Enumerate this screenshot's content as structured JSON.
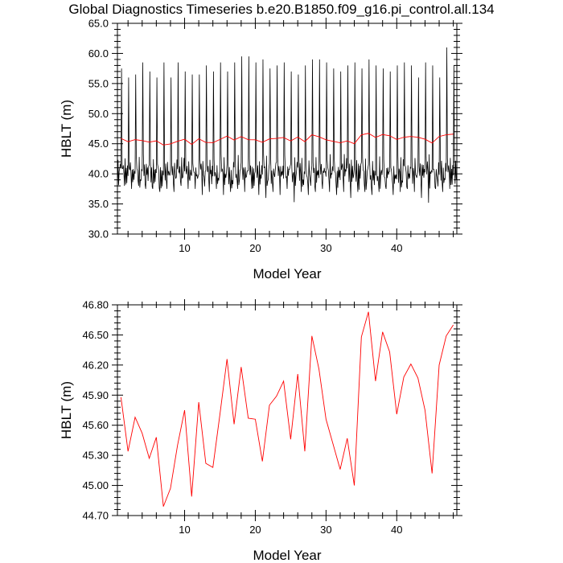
{
  "title": "Global Diagnostics Timeseries b.e20.B1850.f09_g16.pi_control.all.134",
  "chart_data": [
    {
      "type": "line",
      "title": "Global Diagnostics Timeseries b.e20.B1850.f09_g16.pi_control.all.134",
      "xlabel": "Model Year",
      "ylabel": "HBLT (m)",
      "xlim": [
        0.5,
        48.5
      ],
      "ylim": [
        30.0,
        65.0
      ],
      "x_ticks": [
        10,
        20,
        30,
        40
      ],
      "x_tick_labels": [
        "10",
        "20",
        "30",
        "40"
      ],
      "y_ticks": [
        30,
        35,
        40,
        45,
        50,
        55,
        60,
        65
      ],
      "y_tick_labels": [
        "30.0",
        "35.0",
        "40.0",
        "45.0",
        "50.0",
        "55.0",
        "60.0",
        "65.0"
      ],
      "series": [
        {
          "color": "#000000",
          "monthly_peaks": [
            57.5,
            56.0,
            56.5,
            58.5,
            57.0,
            56.0,
            58.5,
            56.0,
            58.5,
            57.0,
            56.5,
            56.5,
            58.0,
            57.0,
            58.5,
            57.0,
            58.5,
            59.5,
            59.5,
            58.5,
            59.0,
            57.5,
            58.0,
            58.5,
            57.0,
            56.5,
            58.0,
            59.0,
            59.0,
            58.5,
            57.5,
            57.0,
            58.0,
            58.5,
            57.5,
            59.0,
            58.0,
            57.5,
            57.0,
            58.0,
            58.5,
            58.0,
            56.0,
            58.5,
            58.0,
            56.0,
            61.0,
            58.0
          ],
          "monthly_troughs": [
            37.5,
            38.0,
            37.5,
            38.0,
            37.5,
            37.5,
            37.0,
            37.5,
            37.0,
            38.0,
            37.5,
            37.5,
            36.5,
            37.0,
            37.5,
            36.5,
            37.0,
            37.5,
            37.0,
            37.5,
            36.5,
            36.0,
            37.0,
            36.5,
            37.5,
            35.3,
            37.0,
            36.5,
            37.0,
            37.5,
            37.0,
            36.5,
            37.0,
            36.0,
            37.0,
            37.0,
            36.5,
            37.0,
            37.5,
            36.5,
            37.0,
            37.5,
            37.0,
            36.0,
            35.2,
            37.5,
            37.0,
            37.5
          ]
        },
        {
          "color": "#ff0000",
          "x": [
            1,
            2,
            3,
            4,
            5,
            6,
            7,
            8,
            9,
            10,
            11,
            12,
            13,
            14,
            15,
            16,
            17,
            18,
            19,
            20,
            21,
            22,
            23,
            24,
            25,
            26,
            27,
            28,
            29,
            30,
            31,
            32,
            33,
            34,
            35,
            36,
            37,
            38,
            39,
            40,
            41,
            42,
            43,
            44,
            45,
            46,
            47,
            48
          ],
          "y": [
            45.88,
            45.34,
            45.68,
            45.52,
            45.27,
            45.48,
            44.79,
            44.97,
            45.4,
            45.75,
            44.89,
            45.83,
            45.22,
            45.18,
            45.71,
            46.26,
            45.61,
            46.18,
            45.67,
            45.66,
            45.24,
            45.8,
            45.89,
            46.04,
            45.46,
            46.11,
            45.34,
            46.49,
            46.16,
            45.66,
            45.41,
            45.16,
            45.47,
            45.0,
            46.48,
            46.73,
            46.04,
            46.53,
            46.33,
            45.71,
            46.08,
            46.21,
            46.07,
            45.75,
            45.12,
            46.2,
            46.49,
            46.6
          ]
        }
      ]
    },
    {
      "type": "line",
      "xlabel": "Model Year",
      "ylabel": "HBLT (m)",
      "xlim": [
        0.5,
        48.5
      ],
      "ylim": [
        44.7,
        46.8
      ],
      "x_ticks": [
        10,
        20,
        30,
        40
      ],
      "x_tick_labels": [
        "10",
        "20",
        "30",
        "40"
      ],
      "y_ticks": [
        44.7,
        45.0,
        45.3,
        45.6,
        45.9,
        46.2,
        46.5,
        46.8
      ],
      "y_tick_labels": [
        "44.70",
        "45.00",
        "45.30",
        "45.60",
        "45.90",
        "46.20",
        "46.50",
        "46.80"
      ],
      "series": [
        {
          "color": "#ff0000",
          "x": [
            1,
            2,
            3,
            4,
            5,
            6,
            7,
            8,
            9,
            10,
            11,
            12,
            13,
            14,
            15,
            16,
            17,
            18,
            19,
            20,
            21,
            22,
            23,
            24,
            25,
            26,
            27,
            28,
            29,
            30,
            31,
            32,
            33,
            34,
            35,
            36,
            37,
            38,
            39,
            40,
            41,
            42,
            43,
            44,
            45,
            46,
            47,
            48
          ],
          "y": [
            45.88,
            45.34,
            45.68,
            45.52,
            45.27,
            45.48,
            44.79,
            44.97,
            45.4,
            45.75,
            44.89,
            45.83,
            45.22,
            45.18,
            45.71,
            46.26,
            45.61,
            46.18,
            45.67,
            45.66,
            45.24,
            45.8,
            45.89,
            46.04,
            45.46,
            46.11,
            45.34,
            46.49,
            46.16,
            45.66,
            45.41,
            45.16,
            45.47,
            45.0,
            46.48,
            46.73,
            46.04,
            46.53,
            46.33,
            45.71,
            46.08,
            46.21,
            46.07,
            45.75,
            45.12,
            46.2,
            46.49,
            46.6
          ]
        }
      ]
    }
  ]
}
